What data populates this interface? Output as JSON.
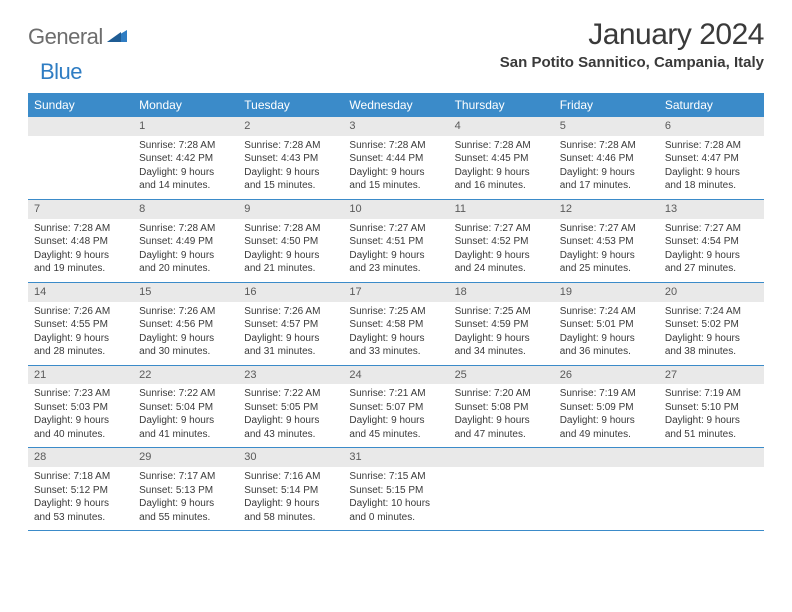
{
  "brand": {
    "part1": "General",
    "part2": "Blue"
  },
  "title": "January 2024",
  "location": "San Potito Sannitico, Campania, Italy",
  "colors": {
    "header_bg": "#3b8bc9",
    "daynum_bg": "#e9e9e9",
    "text": "#3a3a3a",
    "logo_gray": "#6d6d6d",
    "logo_blue": "#2f7dc3"
  },
  "day_names": [
    "Sunday",
    "Monday",
    "Tuesday",
    "Wednesday",
    "Thursday",
    "Friday",
    "Saturday"
  ],
  "weeks": [
    [
      {
        "n": "",
        "sr": "",
        "ss": "",
        "dl1": "",
        "dl2": ""
      },
      {
        "n": "1",
        "sr": "Sunrise: 7:28 AM",
        "ss": "Sunset: 4:42 PM",
        "dl1": "Daylight: 9 hours",
        "dl2": "and 14 minutes."
      },
      {
        "n": "2",
        "sr": "Sunrise: 7:28 AM",
        "ss": "Sunset: 4:43 PM",
        "dl1": "Daylight: 9 hours",
        "dl2": "and 15 minutes."
      },
      {
        "n": "3",
        "sr": "Sunrise: 7:28 AM",
        "ss": "Sunset: 4:44 PM",
        "dl1": "Daylight: 9 hours",
        "dl2": "and 15 minutes."
      },
      {
        "n": "4",
        "sr": "Sunrise: 7:28 AM",
        "ss": "Sunset: 4:45 PM",
        "dl1": "Daylight: 9 hours",
        "dl2": "and 16 minutes."
      },
      {
        "n": "5",
        "sr": "Sunrise: 7:28 AM",
        "ss": "Sunset: 4:46 PM",
        "dl1": "Daylight: 9 hours",
        "dl2": "and 17 minutes."
      },
      {
        "n": "6",
        "sr": "Sunrise: 7:28 AM",
        "ss": "Sunset: 4:47 PM",
        "dl1": "Daylight: 9 hours",
        "dl2": "and 18 minutes."
      }
    ],
    [
      {
        "n": "7",
        "sr": "Sunrise: 7:28 AM",
        "ss": "Sunset: 4:48 PM",
        "dl1": "Daylight: 9 hours",
        "dl2": "and 19 minutes."
      },
      {
        "n": "8",
        "sr": "Sunrise: 7:28 AM",
        "ss": "Sunset: 4:49 PM",
        "dl1": "Daylight: 9 hours",
        "dl2": "and 20 minutes."
      },
      {
        "n": "9",
        "sr": "Sunrise: 7:28 AM",
        "ss": "Sunset: 4:50 PM",
        "dl1": "Daylight: 9 hours",
        "dl2": "and 21 minutes."
      },
      {
        "n": "10",
        "sr": "Sunrise: 7:27 AM",
        "ss": "Sunset: 4:51 PM",
        "dl1": "Daylight: 9 hours",
        "dl2": "and 23 minutes."
      },
      {
        "n": "11",
        "sr": "Sunrise: 7:27 AM",
        "ss": "Sunset: 4:52 PM",
        "dl1": "Daylight: 9 hours",
        "dl2": "and 24 minutes."
      },
      {
        "n": "12",
        "sr": "Sunrise: 7:27 AM",
        "ss": "Sunset: 4:53 PM",
        "dl1": "Daylight: 9 hours",
        "dl2": "and 25 minutes."
      },
      {
        "n": "13",
        "sr": "Sunrise: 7:27 AM",
        "ss": "Sunset: 4:54 PM",
        "dl1": "Daylight: 9 hours",
        "dl2": "and 27 minutes."
      }
    ],
    [
      {
        "n": "14",
        "sr": "Sunrise: 7:26 AM",
        "ss": "Sunset: 4:55 PM",
        "dl1": "Daylight: 9 hours",
        "dl2": "and 28 minutes."
      },
      {
        "n": "15",
        "sr": "Sunrise: 7:26 AM",
        "ss": "Sunset: 4:56 PM",
        "dl1": "Daylight: 9 hours",
        "dl2": "and 30 minutes."
      },
      {
        "n": "16",
        "sr": "Sunrise: 7:26 AM",
        "ss": "Sunset: 4:57 PM",
        "dl1": "Daylight: 9 hours",
        "dl2": "and 31 minutes."
      },
      {
        "n": "17",
        "sr": "Sunrise: 7:25 AM",
        "ss": "Sunset: 4:58 PM",
        "dl1": "Daylight: 9 hours",
        "dl2": "and 33 minutes."
      },
      {
        "n": "18",
        "sr": "Sunrise: 7:25 AM",
        "ss": "Sunset: 4:59 PM",
        "dl1": "Daylight: 9 hours",
        "dl2": "and 34 minutes."
      },
      {
        "n": "19",
        "sr": "Sunrise: 7:24 AM",
        "ss": "Sunset: 5:01 PM",
        "dl1": "Daylight: 9 hours",
        "dl2": "and 36 minutes."
      },
      {
        "n": "20",
        "sr": "Sunrise: 7:24 AM",
        "ss": "Sunset: 5:02 PM",
        "dl1": "Daylight: 9 hours",
        "dl2": "and 38 minutes."
      }
    ],
    [
      {
        "n": "21",
        "sr": "Sunrise: 7:23 AM",
        "ss": "Sunset: 5:03 PM",
        "dl1": "Daylight: 9 hours",
        "dl2": "and 40 minutes."
      },
      {
        "n": "22",
        "sr": "Sunrise: 7:22 AM",
        "ss": "Sunset: 5:04 PM",
        "dl1": "Daylight: 9 hours",
        "dl2": "and 41 minutes."
      },
      {
        "n": "23",
        "sr": "Sunrise: 7:22 AM",
        "ss": "Sunset: 5:05 PM",
        "dl1": "Daylight: 9 hours",
        "dl2": "and 43 minutes."
      },
      {
        "n": "24",
        "sr": "Sunrise: 7:21 AM",
        "ss": "Sunset: 5:07 PM",
        "dl1": "Daylight: 9 hours",
        "dl2": "and 45 minutes."
      },
      {
        "n": "25",
        "sr": "Sunrise: 7:20 AM",
        "ss": "Sunset: 5:08 PM",
        "dl1": "Daylight: 9 hours",
        "dl2": "and 47 minutes."
      },
      {
        "n": "26",
        "sr": "Sunrise: 7:19 AM",
        "ss": "Sunset: 5:09 PM",
        "dl1": "Daylight: 9 hours",
        "dl2": "and 49 minutes."
      },
      {
        "n": "27",
        "sr": "Sunrise: 7:19 AM",
        "ss": "Sunset: 5:10 PM",
        "dl1": "Daylight: 9 hours",
        "dl2": "and 51 minutes."
      }
    ],
    [
      {
        "n": "28",
        "sr": "Sunrise: 7:18 AM",
        "ss": "Sunset: 5:12 PM",
        "dl1": "Daylight: 9 hours",
        "dl2": "and 53 minutes."
      },
      {
        "n": "29",
        "sr": "Sunrise: 7:17 AM",
        "ss": "Sunset: 5:13 PM",
        "dl1": "Daylight: 9 hours",
        "dl2": "and 55 minutes."
      },
      {
        "n": "30",
        "sr": "Sunrise: 7:16 AM",
        "ss": "Sunset: 5:14 PM",
        "dl1": "Daylight: 9 hours",
        "dl2": "and 58 minutes."
      },
      {
        "n": "31",
        "sr": "Sunrise: 7:15 AM",
        "ss": "Sunset: 5:15 PM",
        "dl1": "Daylight: 10 hours",
        "dl2": "and 0 minutes."
      },
      {
        "n": "",
        "sr": "",
        "ss": "",
        "dl1": "",
        "dl2": ""
      },
      {
        "n": "",
        "sr": "",
        "ss": "",
        "dl1": "",
        "dl2": ""
      },
      {
        "n": "",
        "sr": "",
        "ss": "",
        "dl1": "",
        "dl2": ""
      }
    ]
  ]
}
